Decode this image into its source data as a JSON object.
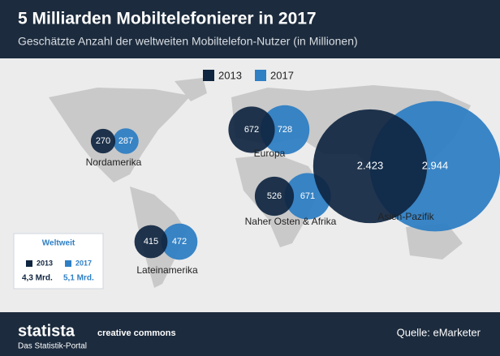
{
  "chart_data": {
    "type": "bubble-map",
    "title": "5 Milliarden Mobiltelefonierer in 2017",
    "subtitle": "Geschätzte Anzahl der weltweiten Mobiltelefon-Nutzer (in Millionen)",
    "categories": [
      "Nordamerika",
      "Europa",
      "Naher Osten & Afrika",
      "Asien-Pazifik",
      "Lateinamerika"
    ],
    "series": [
      {
        "name": "2013",
        "color": "#0f2540",
        "values": [
          270,
          672,
          526,
          2423,
          415
        ],
        "value_labels": [
          "270",
          "672",
          "526",
          "2.423",
          "415"
        ]
      },
      {
        "name": "2017",
        "color": "#2f7fc4",
        "values": [
          287,
          728,
          671,
          2944,
          472
        ],
        "value_labels": [
          "287",
          "728",
          "671",
          "2.944",
          "472"
        ]
      }
    ],
    "total": {
      "title": "Weltweit",
      "values": [
        4.3,
        5.1
      ],
      "value_labels": [
        "4,3 Mrd.",
        "5,1 Mrd."
      ]
    },
    "source": "Quelle: eMarketer",
    "brand": "statista",
    "tagline": "Das Statistik-Portal",
    "license": "creative commons"
  }
}
